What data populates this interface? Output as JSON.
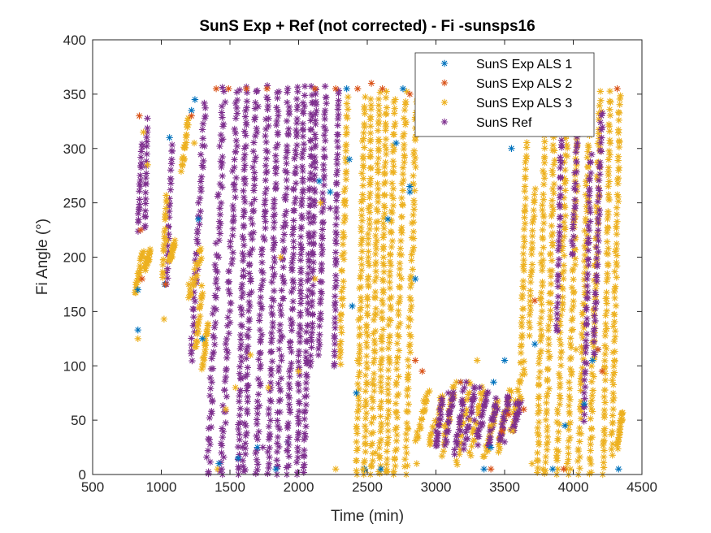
{
  "chart_data": {
    "type": "scatter",
    "title": "SunS Exp + Ref  (not corrected) - Fi -sunsps16",
    "xlabel": "Time (min)",
    "ylabel": "Fi Angle (°)",
    "xlim": [
      500,
      4500
    ],
    "ylim": [
      0,
      400
    ],
    "xticks": [
      500,
      1000,
      1500,
      2000,
      2500,
      3000,
      3500,
      4000,
      4500
    ],
    "yticks": [
      0,
      50,
      100,
      150,
      200,
      250,
      300,
      350,
      400
    ],
    "grid": false,
    "legend_position": "top-right",
    "marker": "asterisk",
    "series": [
      {
        "name": "SunS Exp ALS 1",
        "color": "#0072BD",
        "points": [
          [
            830,
            133
          ],
          [
            830,
            170
          ],
          [
            1025,
            175
          ],
          [
            1060,
            310
          ],
          [
            1220,
            335
          ],
          [
            1245,
            345
          ],
          [
            1270,
            235
          ],
          [
            1300,
            125
          ],
          [
            1420,
            10
          ],
          [
            1560,
            15
          ],
          [
            1700,
            25
          ],
          [
            1835,
            5
          ],
          [
            1920,
            30
          ],
          [
            2150,
            270
          ],
          [
            2230,
            260
          ],
          [
            2350,
            355
          ],
          [
            2370,
            290
          ],
          [
            2390,
            155
          ],
          [
            2420,
            75
          ],
          [
            2480,
            5
          ],
          [
            2600,
            5
          ],
          [
            2650,
            235
          ],
          [
            2710,
            305
          ],
          [
            2760,
            355
          ],
          [
            2810,
            260
          ],
          [
            2810,
            265
          ],
          [
            2850,
            180
          ],
          [
            3180,
            85
          ],
          [
            3350,
            5
          ],
          [
            3400,
            25
          ],
          [
            3420,
            85
          ],
          [
            3500,
            105
          ],
          [
            3550,
            300
          ],
          [
            3720,
            120
          ],
          [
            3850,
            5
          ],
          [
            3940,
            45
          ],
          [
            4080,
            65
          ],
          [
            4140,
            105
          ],
          [
            4180,
            115
          ],
          [
            4330,
            5
          ]
        ]
      },
      {
        "name": "SunS Exp ALS 2",
        "color": "#D95319",
        "points": [
          [
            840,
            330
          ],
          [
            850,
            225
          ],
          [
            860,
            180
          ],
          [
            1030,
            175
          ],
          [
            1220,
            330
          ],
          [
            1400,
            355
          ],
          [
            1490,
            355
          ],
          [
            1620,
            355
          ],
          [
            1770,
            355
          ],
          [
            2120,
            355
          ],
          [
            2270,
            355
          ],
          [
            2430,
            355
          ],
          [
            2530,
            360
          ],
          [
            2610,
            355
          ],
          [
            2810,
            350
          ],
          [
            2850,
            105
          ],
          [
            2900,
            95
          ],
          [
            3180,
            85
          ],
          [
            3400,
            5
          ],
          [
            3480,
            40
          ],
          [
            3530,
            55
          ],
          [
            3640,
            60
          ],
          [
            3720,
            160
          ],
          [
            3930,
            5
          ],
          [
            4180,
            115
          ],
          [
            4210,
            95
          ],
          [
            4320,
            355
          ]
        ]
      },
      {
        "name": "SunS Exp ALS 3",
        "color": "#EDB120",
        "points": [
          [
            830,
            125
          ],
          [
            830,
            185
          ],
          [
            870,
            315
          ],
          [
            900,
            285
          ],
          [
            1020,
            143
          ],
          [
            1040,
            215
          ],
          [
            1200,
            175
          ],
          [
            1240,
            305
          ],
          [
            1320,
            115
          ],
          [
            1410,
            5
          ],
          [
            1470,
            60
          ],
          [
            1540,
            80
          ],
          [
            1650,
            110
          ],
          [
            1780,
            80
          ],
          [
            1870,
            200
          ],
          [
            2000,
            95
          ],
          [
            2120,
            180
          ],
          [
            2160,
            250
          ],
          [
            2270,
            5
          ],
          [
            2330,
            250
          ],
          [
            2430,
            105
          ],
          [
            2470,
            5
          ],
          [
            2560,
            20
          ],
          [
            2640,
            5
          ],
          [
            2700,
            15
          ],
          [
            2860,
            10
          ],
          [
            2920,
            60
          ],
          [
            3060,
            45
          ],
          [
            3250,
            50
          ],
          [
            3300,
            105
          ],
          [
            3400,
            45
          ],
          [
            3560,
            40
          ],
          [
            3620,
            70
          ],
          [
            3700,
            10
          ],
          [
            3780,
            5
          ],
          [
            3880,
            15
          ],
          [
            3980,
            5
          ],
          [
            4020,
            115
          ],
          [
            4120,
            15
          ],
          [
            4220,
            30
          ],
          [
            4300,
            105
          ],
          [
            4350,
            55
          ]
        ]
      },
      {
        "name": "SunS Ref",
        "color": "#7E2F8E",
        "points": [
          [
            1440,
            5
          ],
          [
            1590,
            25
          ],
          [
            1740,
            25
          ],
          [
            1920,
            30
          ],
          [
            2060,
            105
          ],
          [
            2100,
            205
          ],
          [
            2230,
            245
          ],
          [
            3000,
            40
          ],
          [
            3090,
            75
          ],
          [
            3180,
            40
          ],
          [
            3220,
            85
          ],
          [
            3280,
            50
          ],
          [
            3320,
            80
          ],
          [
            3450,
            60
          ],
          [
            3500,
            30
          ],
          [
            3580,
            65
          ]
        ]
      }
    ],
    "band_series_note": "dense vertical streaks approximated by generated points",
    "bands": [
      {
        "series": "SunS Ref",
        "ranges": [
          [
            830,
            860,
            225,
            310
          ],
          [
            880,
            900,
            225,
            330
          ],
          [
            1040,
            1080,
            175,
            310
          ],
          [
            1220,
            1320,
            105,
            345
          ],
          [
            1340,
            1460,
            0,
            360
          ],
          [
            1440,
            1560,
            0,
            360
          ],
          [
            1560,
            1620,
            0,
            360
          ],
          [
            1600,
            1700,
            0,
            360
          ],
          [
            1690,
            1780,
            0,
            360
          ],
          [
            1780,
            1850,
            0,
            360
          ],
          [
            1840,
            1930,
            0,
            360
          ],
          [
            1920,
            1990,
            0,
            360
          ],
          [
            1990,
            2040,
            0,
            360
          ],
          [
            2040,
            2100,
            0,
            360
          ],
          [
            2090,
            2130,
            100,
            360
          ],
          [
            2150,
            2200,
            110,
            360
          ],
          [
            2260,
            2290,
            100,
            360
          ]
        ]
      },
      {
        "series": "SunS Exp ALS 3",
        "ranges": [
          [
            810,
            870,
            165,
            210
          ],
          [
            880,
            920,
            190,
            205
          ],
          [
            1010,
            1040,
            180,
            260
          ],
          [
            1060,
            1100,
            195,
            215
          ],
          [
            1150,
            1200,
            280,
            330
          ],
          [
            1200,
            1300,
            160,
            210
          ],
          [
            1250,
            1300,
            115,
            175
          ],
          [
            1300,
            1340,
            100,
            140
          ],
          [
            2300,
            2360,
            100,
            350
          ],
          [
            2420,
            2480,
            0,
            350
          ],
          [
            2480,
            2530,
            0,
            350
          ],
          [
            2530,
            2590,
            0,
            355
          ],
          [
            2590,
            2640,
            0,
            355
          ],
          [
            2640,
            2700,
            0,
            350
          ],
          [
            2700,
            2780,
            0,
            355
          ],
          [
            2780,
            2860,
            0,
            350
          ],
          [
            2850,
            2950,
            30,
            80
          ],
          [
            2950,
            3050,
            25,
            75
          ],
          [
            3050,
            3150,
            20,
            90
          ],
          [
            3150,
            3250,
            10,
            90
          ],
          [
            3250,
            3350,
            20,
            85
          ],
          [
            3350,
            3450,
            15,
            70
          ],
          [
            3450,
            3550,
            20,
            80
          ],
          [
            3550,
            3650,
            40,
            105
          ],
          [
            3620,
            3660,
            100,
            310
          ],
          [
            3680,
            3720,
            130,
            270
          ],
          [
            3740,
            3800,
            0,
            360
          ],
          [
            3800,
            3870,
            0,
            355
          ],
          [
            3880,
            3960,
            0,
            355
          ],
          [
            3960,
            4040,
            0,
            350
          ],
          [
            4040,
            4120,
            0,
            345
          ],
          [
            4120,
            4200,
            0,
            355
          ],
          [
            4220,
            4270,
            0,
            355
          ],
          [
            4280,
            4340,
            20,
            355
          ],
          [
            4320,
            4360,
            25,
            60
          ]
        ]
      },
      {
        "series": "SunS Ref",
        "ranges": [
          [
            3000,
            3050,
            25,
            70
          ],
          [
            3070,
            3130,
            30,
            80
          ],
          [
            3140,
            3210,
            20,
            80
          ],
          [
            3210,
            3290,
            25,
            85
          ],
          [
            3300,
            3380,
            30,
            80
          ],
          [
            3380,
            3440,
            25,
            70
          ],
          [
            3460,
            3540,
            30,
            75
          ],
          [
            3560,
            3620,
            40,
            70
          ],
          [
            3880,
            3920,
            130,
            350
          ],
          [
            3990,
            4040,
            200,
            340
          ],
          [
            4080,
            4130,
            50,
            300
          ],
          [
            4150,
            4210,
            110,
            340
          ]
        ]
      }
    ]
  }
}
